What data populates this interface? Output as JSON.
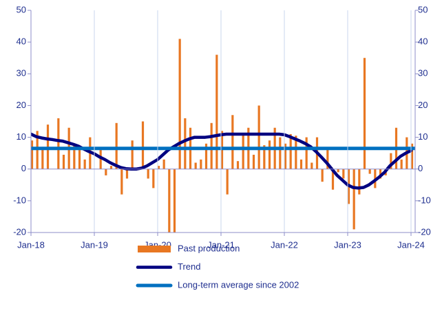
{
  "chart_data": {
    "type": "bar_line",
    "categories": [
      "Jan-18",
      null,
      null,
      null,
      null,
      null,
      null,
      null,
      null,
      null,
      null,
      null,
      "Jan-19",
      null,
      null,
      null,
      null,
      null,
      null,
      null,
      null,
      null,
      null,
      null,
      "Jan-20",
      null,
      null,
      null,
      null,
      null,
      null,
      null,
      null,
      null,
      null,
      null,
      "Jan-21",
      null,
      null,
      null,
      null,
      null,
      null,
      null,
      null,
      null,
      null,
      null,
      "Jan-22",
      null,
      null,
      null,
      null,
      null,
      null,
      null,
      null,
      null,
      null,
      null,
      "Jan-23",
      null,
      null,
      null,
      null,
      null,
      null,
      null,
      null,
      null,
      null,
      null,
      "Jan-24"
    ],
    "series": [
      {
        "name": "Past production",
        "type": "bar",
        "color": "#e87722",
        "values": [
          9,
          12,
          7,
          14,
          0,
          16,
          4.5,
          13,
          8,
          6,
          3,
          10,
          0,
          6,
          -2,
          1,
          14.5,
          -8,
          -3,
          9,
          0,
          15,
          -3,
          -6,
          1,
          3,
          -21,
          -21,
          41,
          16,
          13,
          2,
          3,
          8,
          14.5,
          36,
          12,
          -8,
          17,
          2.5,
          11,
          13,
          4.5,
          20,
          7.5,
          9,
          13,
          10,
          8,
          11,
          10.5,
          3,
          10,
          2,
          10,
          -4,
          6,
          -6.5,
          -1,
          -3,
          -11,
          -19,
          -8,
          35,
          -1.5,
          -6,
          -3,
          -2,
          5,
          13,
          3,
          10,
          8
        ]
      },
      {
        "name": "Trend",
        "type": "line",
        "color": "#000080",
        "values": [
          11,
          10.2,
          9.8,
          9.5,
          9.3,
          9,
          8.8,
          8.3,
          7.8,
          7.2,
          6.3,
          5.5,
          4.8,
          3.8,
          3,
          2,
          1.2,
          0.5,
          0.1,
          0,
          0,
          0.3,
          1,
          2,
          3,
          4.5,
          6,
          7,
          8,
          8.8,
          9.5,
          10,
          10,
          10,
          10.2,
          10.5,
          10.8,
          11,
          11,
          11,
          11,
          11,
          11,
          11,
          11,
          11,
          11,
          11,
          10.8,
          10.2,
          9.5,
          8.8,
          8,
          7,
          5.5,
          3.8,
          2,
          0,
          -2,
          -3.5,
          -5,
          -5.8,
          -6,
          -5.8,
          -5,
          -3.8,
          -2.5,
          -1,
          1,
          2.5,
          4,
          5,
          5.8
        ]
      },
      {
        "name": "Long-term average since 2002",
        "type": "hline",
        "color": "#0070c0",
        "value": 6.5
      }
    ],
    "ylim": [
      -20,
      50
    ],
    "yticks": [
      -20,
      -10,
      0,
      10,
      20,
      30,
      40,
      50
    ],
    "y2lim": [
      -20,
      50
    ],
    "y2ticks": [
      -20,
      -10,
      0,
      10,
      20,
      30,
      40,
      50
    ],
    "grid": true
  }
}
